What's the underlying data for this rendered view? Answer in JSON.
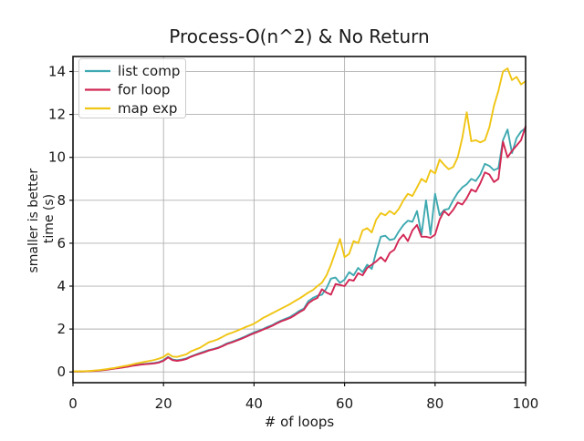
{
  "chart_data": {
    "type": "line",
    "title": "Process-O(n^2) & No Return",
    "xlabel": "# of loops",
    "ylabel_lines": [
      "smaller is better",
      "time (s)"
    ],
    "xlim": [
      0,
      100
    ],
    "ylim": [
      -0.5,
      14.7
    ],
    "xticks": [
      0,
      20,
      40,
      60,
      80,
      100
    ],
    "yticks": [
      0,
      2,
      4,
      6,
      8,
      10,
      12,
      14
    ],
    "grid": true,
    "grid_color": "#b0b0b0",
    "legend_position": "upper left",
    "x": [
      0,
      1,
      2,
      3,
      4,
      5,
      6,
      7,
      8,
      9,
      10,
      11,
      12,
      13,
      14,
      15,
      16,
      17,
      18,
      19,
      20,
      21,
      22,
      23,
      24,
      25,
      26,
      27,
      28,
      29,
      30,
      31,
      32,
      33,
      34,
      35,
      36,
      37,
      38,
      39,
      40,
      41,
      42,
      43,
      44,
      45,
      46,
      47,
      48,
      49,
      50,
      51,
      52,
      53,
      54,
      55,
      56,
      57,
      58,
      59,
      60,
      61,
      62,
      63,
      64,
      65,
      66,
      67,
      68,
      69,
      70,
      71,
      72,
      73,
      74,
      75,
      76,
      77,
      78,
      79,
      80,
      81,
      82,
      83,
      84,
      85,
      86,
      87,
      88,
      89,
      90,
      91,
      92,
      93,
      94,
      95,
      96,
      97,
      98,
      99,
      100
    ],
    "series": [
      {
        "name": "list comp",
        "color": "#3EA9B0",
        "values": [
          0.02,
          0.02,
          0.02,
          0.03,
          0.04,
          0.06,
          0.08,
          0.1,
          0.13,
          0.16,
          0.2,
          0.22,
          0.26,
          0.3,
          0.33,
          0.36,
          0.38,
          0.4,
          0.42,
          0.46,
          0.55,
          0.7,
          0.58,
          0.55,
          0.58,
          0.63,
          0.72,
          0.8,
          0.88,
          0.95,
          1.02,
          1.07,
          1.13,
          1.22,
          1.33,
          1.4,
          1.48,
          1.56,
          1.65,
          1.75,
          1.85,
          1.92,
          2.0,
          2.1,
          2.18,
          2.3,
          2.4,
          2.48,
          2.57,
          2.7,
          2.85,
          2.95,
          3.3,
          3.45,
          3.55,
          3.6,
          3.9,
          4.35,
          4.4,
          4.15,
          4.3,
          4.65,
          4.5,
          4.85,
          4.65,
          5.0,
          4.8,
          5.6,
          6.3,
          6.35,
          6.15,
          6.2,
          6.55,
          6.85,
          7.05,
          7.0,
          7.5,
          6.4,
          8.0,
          6.4,
          8.3,
          7.3,
          7.55,
          7.6,
          8.0,
          8.35,
          8.6,
          8.75,
          9.0,
          8.9,
          9.2,
          9.7,
          9.6,
          9.4,
          9.5,
          10.8,
          11.3,
          10.2,
          10.9,
          11.2,
          11.37
        ]
      },
      {
        "name": "for loop",
        "color": "#D22855",
        "values": [
          0.02,
          0.02,
          0.02,
          0.03,
          0.04,
          0.05,
          0.07,
          0.09,
          0.12,
          0.15,
          0.18,
          0.21,
          0.24,
          0.28,
          0.31,
          0.34,
          0.36,
          0.38,
          0.4,
          0.44,
          0.52,
          0.68,
          0.55,
          0.52,
          0.55,
          0.6,
          0.7,
          0.78,
          0.85,
          0.92,
          1.0,
          1.05,
          1.11,
          1.2,
          1.3,
          1.37,
          1.45,
          1.53,
          1.62,
          1.71,
          1.8,
          1.88,
          1.97,
          2.06,
          2.15,
          2.26,
          2.36,
          2.44,
          2.52,
          2.64,
          2.78,
          2.9,
          3.2,
          3.35,
          3.45,
          3.85,
          3.7,
          3.6,
          4.1,
          4.05,
          4.0,
          4.3,
          4.25,
          4.6,
          4.5,
          4.85,
          5.0,
          5.15,
          5.35,
          5.15,
          5.55,
          5.7,
          6.15,
          6.4,
          6.1,
          6.6,
          6.85,
          6.3,
          6.3,
          6.25,
          6.4,
          7.1,
          7.5,
          7.3,
          7.55,
          7.9,
          7.8,
          8.1,
          8.5,
          8.4,
          8.8,
          9.3,
          9.2,
          8.85,
          9.0,
          10.73,
          10.0,
          10.3,
          10.55,
          10.8,
          11.44
        ]
      },
      {
        "name": "map exp",
        "color": "#F0C514",
        "values": [
          0.03,
          0.03,
          0.03,
          0.04,
          0.05,
          0.07,
          0.09,
          0.12,
          0.15,
          0.18,
          0.22,
          0.26,
          0.3,
          0.35,
          0.4,
          0.44,
          0.48,
          0.52,
          0.56,
          0.62,
          0.7,
          0.85,
          0.72,
          0.7,
          0.76,
          0.82,
          0.95,
          1.04,
          1.12,
          1.25,
          1.38,
          1.45,
          1.52,
          1.63,
          1.74,
          1.82,
          1.9,
          1.99,
          2.08,
          2.16,
          2.25,
          2.38,
          2.52,
          2.62,
          2.73,
          2.84,
          2.95,
          3.06,
          3.17,
          3.3,
          3.42,
          3.56,
          3.7,
          3.82,
          4.0,
          4.16,
          4.5,
          5.0,
          5.6,
          6.2,
          5.35,
          5.5,
          6.1,
          6.0,
          6.6,
          6.7,
          6.5,
          7.1,
          7.4,
          7.3,
          7.5,
          7.35,
          7.6,
          8.0,
          8.3,
          8.2,
          8.6,
          9.0,
          8.85,
          9.4,
          9.25,
          9.9,
          9.65,
          9.45,
          9.55,
          10.0,
          10.9,
          12.1,
          10.75,
          10.8,
          10.7,
          10.8,
          11.4,
          12.4,
          13.1,
          14.0,
          14.15,
          13.6,
          13.75,
          13.4,
          13.55
        ]
      }
    ]
  }
}
